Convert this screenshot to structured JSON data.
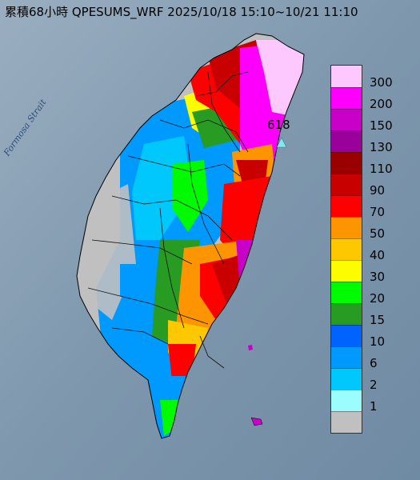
{
  "title": "累積68小時 QPESUMS_WRF 2025/10/18 15:10~10/21 11:10",
  "sea_label": "Formosa Strait",
  "max_value_label": "618",
  "colors": {
    "sea": "#8fa3b6",
    "max_marker": "#7fe9ee"
  },
  "legend": [
    {
      "label": "300",
      "color": "#fdc8fd"
    },
    {
      "label": "200",
      "color": "#fc00fc"
    },
    {
      "label": "150",
      "color": "#c800c8"
    },
    {
      "label": "130",
      "color": "#9a009a"
    },
    {
      "label": "110",
      "color": "#9a0000"
    },
    {
      "label": "90",
      "color": "#c90000"
    },
    {
      "label": "70",
      "color": "#fd0000"
    },
    {
      "label": "50",
      "color": "#fd9500"
    },
    {
      "label": "40",
      "color": "#fdc800"
    },
    {
      "label": "30",
      "color": "#fdfd00"
    },
    {
      "label": "20",
      "color": "#00fb00"
    },
    {
      "label": "15",
      "color": "#279b22"
    },
    {
      "label": "10",
      "color": "#0063fd"
    },
    {
      "label": "6",
      "color": "#0099fd"
    },
    {
      "label": "2",
      "color": "#00c8fd"
    },
    {
      "label": "1",
      "color": "#9bfdfd"
    },
    {
      "label": "",
      "color": "#c0c0c0"
    }
  ]
}
